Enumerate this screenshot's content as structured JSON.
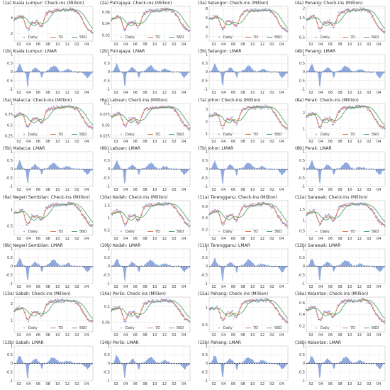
{
  "x_ticks": [
    "02",
    "04",
    "06",
    "08",
    "10",
    "12",
    "02",
    "04"
  ],
  "legend": [
    "Daily",
    "7D",
    "56D"
  ],
  "colors": {
    "daily": "#8c8ccf",
    "ma7": "#e07b54",
    "ma56": "#55a868",
    "lmar": "#8fa9df",
    "grid": "#e6e6e6",
    "frame": "#bfbfbf",
    "zero": "#222222"
  },
  "chart_data": [
    {
      "type": "line",
      "state": "Kuala Lumpur",
      "title": "(1a) Kuala Lumpur: Check-ins (Million)",
      "yticks": [
        2,
        4
      ],
      "ylim": [
        1.0,
        5.5
      ],
      "series": [
        "Daily",
        "7D",
        "56D"
      ]
    },
    {
      "type": "line",
      "state": "Putrajaya",
      "title": "(2a) Putrajaya: Check-ins (Million)",
      "yticks": [
        0.02,
        0.04,
        0.06
      ],
      "ylim": [
        0.01,
        0.07
      ],
      "series": [
        "Daily",
        "7D",
        "56D"
      ]
    },
    {
      "type": "line",
      "state": "Selangor",
      "title": "(3a) Selangor: Check-ins (Million)",
      "yticks": [
        2,
        4,
        6,
        8
      ],
      "ylim": [
        1.0,
        8.5
      ],
      "series": [
        "Daily",
        "7D",
        "56D"
      ]
    },
    {
      "type": "line",
      "state": "Penang",
      "title": "(4a) Penang: Check-ins (Million)",
      "yticks": [
        0.5,
        1.0,
        1.5,
        2.0
      ],
      "ylim": [
        0.3,
        2.1
      ],
      "series": [
        "Daily",
        "7D",
        "56D"
      ]
    },
    {
      "type": "area",
      "state": "Kuala Lumpur",
      "title": "(1b) Kuala Lumpur: LMAR",
      "yticks": [
        -1.0,
        -0.5,
        0.0,
        0.5,
        1.0
      ],
      "ylim": [
        -1.0,
        1.0
      ]
    },
    {
      "type": "area",
      "state": "Putrajaya",
      "title": "(2b) Putrajaya: LMAR",
      "yticks": [
        -1.0,
        -0.5,
        0.0,
        0.5,
        1.0
      ],
      "ylim": [
        -1.0,
        1.0
      ]
    },
    {
      "type": "area",
      "state": "Selangor",
      "title": "(3b) Selangor: LMAR",
      "yticks": [
        -1.0,
        -0.5,
        0.0,
        0.5,
        1.0
      ],
      "ylim": [
        -1.0,
        1.0
      ]
    },
    {
      "type": "area",
      "state": "Penang",
      "title": "(4b) Penang: LMAR",
      "yticks": [
        -1.0,
        -0.5,
        0.0,
        0.5,
        1.0
      ],
      "ylim": [
        -1.0,
        1.0
      ]
    },
    {
      "type": "line",
      "state": "Malacca",
      "title": "(5a) Malacca: Check-ins (Million)",
      "yticks": [
        0.25,
        0.5,
        0.75,
        1.0
      ],
      "ylim": [
        0.2,
        1.0
      ],
      "series": [
        "Daily",
        "7D",
        "56D"
      ]
    },
    {
      "type": "line",
      "state": "Labuan",
      "title": "(6a) Labuan: Check-ins (Million)",
      "yticks": [
        0.025,
        0.05,
        0.075,
        0.1
      ],
      "ylim": [
        0.02,
        0.1
      ],
      "series": [
        "Daily",
        "7D",
        "56D"
      ]
    },
    {
      "type": "line",
      "state": "Johor",
      "title": "(7a) Johor: Check-ins (Million)",
      "yticks": [
        1,
        2,
        3
      ],
      "ylim": [
        0.6,
        3.5
      ],
      "series": [
        "Daily",
        "7D",
        "56D"
      ]
    },
    {
      "type": "line",
      "state": "Perak",
      "title": "(8a) Perak: Check-ins (Million)",
      "yticks": [
        1,
        2
      ],
      "ylim": [
        0.4,
        2.6
      ],
      "series": [
        "Daily",
        "7D",
        "56D"
      ]
    },
    {
      "type": "area",
      "state": "Malacca",
      "title": "(5b) Malacca: LMAR",
      "yticks": [
        -1.0,
        -0.5,
        0.0,
        0.5,
        1.0
      ],
      "ylim": [
        -1.0,
        1.0
      ]
    },
    {
      "type": "area",
      "state": "Labuan",
      "title": "(6b) Labuan: LMAR",
      "yticks": [
        -1.0,
        -0.5,
        0.0,
        0.5,
        1.0
      ],
      "ylim": [
        -1.0,
        1.0
      ]
    },
    {
      "type": "area",
      "state": "Johor",
      "title": "(7b) Johor: LMAR",
      "yticks": [
        -1.0,
        -0.5,
        0.0,
        0.5,
        1.0
      ],
      "ylim": [
        -1.0,
        1.0
      ]
    },
    {
      "type": "area",
      "state": "Perak",
      "title": "(8b) Perak: LMAR",
      "yticks": [
        -1.0,
        -0.5,
        0.0,
        0.5,
        1.0
      ],
      "ylim": [
        -1.0,
        1.0
      ]
    },
    {
      "type": "line",
      "state": "Negeri Sembilan",
      "title": "(9a) Negeri Sembilan: Check-ins (Million)",
      "yticks": [
        0.5,
        1.0
      ],
      "ylim": [
        0.2,
        1.3
      ],
      "series": [
        "Daily",
        "7D",
        "56D"
      ]
    },
    {
      "type": "line",
      "state": "Kedah",
      "title": "(10a) Kedah: Check-ins (Million)",
      "yticks": [
        0.5,
        1.0,
        1.5
      ],
      "ylim": [
        0.3,
        1.7
      ],
      "series": [
        "Daily",
        "7D",
        "56D"
      ]
    },
    {
      "type": "line",
      "state": "Terengganu",
      "title": "(11a) Terengganu: Check-ins (Million)",
      "yticks": [
        0.2,
        0.4,
        0.6
      ],
      "ylim": [
        0.1,
        0.7
      ],
      "series": [
        "Daily",
        "7D",
        "56D"
      ]
    },
    {
      "type": "line",
      "state": "Sarawak",
      "title": "(12a) Sarawak: Check-ins (Million)",
      "yticks": [
        0.5,
        1.0,
        1.5
      ],
      "ylim": [
        0.3,
        1.9
      ],
      "series": [
        "Daily",
        "7D",
        "56D"
      ]
    },
    {
      "type": "area",
      "state": "Negeri Sembilan",
      "title": "(9b) Negeri Sembilan: LMAR",
      "yticks": [
        -1.0,
        -0.5,
        0.0,
        0.5,
        1.0
      ],
      "ylim": [
        -1.0,
        1.0
      ]
    },
    {
      "type": "area",
      "state": "Kedah",
      "title": "(10b) Kedah: LMAR",
      "yticks": [
        -1.0,
        -0.5,
        0.0,
        0.5,
        1.0
      ],
      "ylim": [
        -1.0,
        1.0
      ]
    },
    {
      "type": "area",
      "state": "Terengganu",
      "title": "(11b) Terengganu: LMAR",
      "yticks": [
        -1.0,
        -0.5,
        0.0,
        0.5,
        1.0
      ],
      "ylim": [
        -1.0,
        1.0
      ]
    },
    {
      "type": "area",
      "state": "Sarawak",
      "title": "(12b) Sarawak: LMAR",
      "yticks": [
        -1.0,
        -0.5,
        0.0,
        0.5,
        1.0
      ],
      "ylim": [
        -1.0,
        1.0
      ]
    },
    {
      "type": "line",
      "state": "Sabah",
      "title": "(13a) Sabah: Check-ins (Million)",
      "yticks": [
        1,
        2
      ],
      "ylim": [
        0.3,
        2.4
      ],
      "series": [
        "Daily",
        "7D",
        "56D"
      ]
    },
    {
      "type": "line",
      "state": "Perlis",
      "title": "(14a) Perlis: Check-ins (Million)",
      "yticks": [
        0.05,
        0.1
      ],
      "ylim": [
        0.02,
        0.13
      ],
      "series": [
        "Daily",
        "7D",
        "56D"
      ]
    },
    {
      "type": "line",
      "state": "Pahang",
      "title": "(15a) Pahang: Check-ins (Million)",
      "yticks": [
        0.5,
        1.0
      ],
      "ylim": [
        0.3,
        1.3
      ],
      "series": [
        "Daily",
        "7D",
        "56D"
      ]
    },
    {
      "type": "line",
      "state": "Kelantan",
      "title": "(16a) Kelantan: Check-ins (Million)",
      "yticks": [
        0.2,
        0.4,
        0.6
      ],
      "ylim": [
        0.1,
        0.7
      ],
      "series": [
        "Daily",
        "7D",
        "56D"
      ]
    },
    {
      "type": "area",
      "state": "Sabah",
      "title": "(13b) Sabah: LMAR",
      "yticks": [
        -1.0,
        -0.5,
        0.0,
        0.5,
        1.0
      ],
      "ylim": [
        -1.0,
        1.0
      ]
    },
    {
      "type": "area",
      "state": "Perlis",
      "title": "(14b) Perlis: LMAR",
      "yticks": [
        -1.0,
        -0.5,
        0.0,
        0.5,
        1.0
      ],
      "ylim": [
        -1.0,
        1.0
      ]
    },
    {
      "type": "area",
      "state": "Pahang",
      "title": "(15b) Pahang: LMAR",
      "yticks": [
        -1.0,
        -0.5,
        0.0,
        0.5,
        1.0
      ],
      "ylim": [
        -1.0,
        1.0
      ]
    },
    {
      "type": "area",
      "state": "Kelantan",
      "title": "(16b) Kelantan: LMAR",
      "yticks": [
        -1.0,
        -0.5,
        0.0,
        0.5,
        1.0
      ],
      "ylim": [
        -1.0,
        1.0
      ]
    }
  ]
}
